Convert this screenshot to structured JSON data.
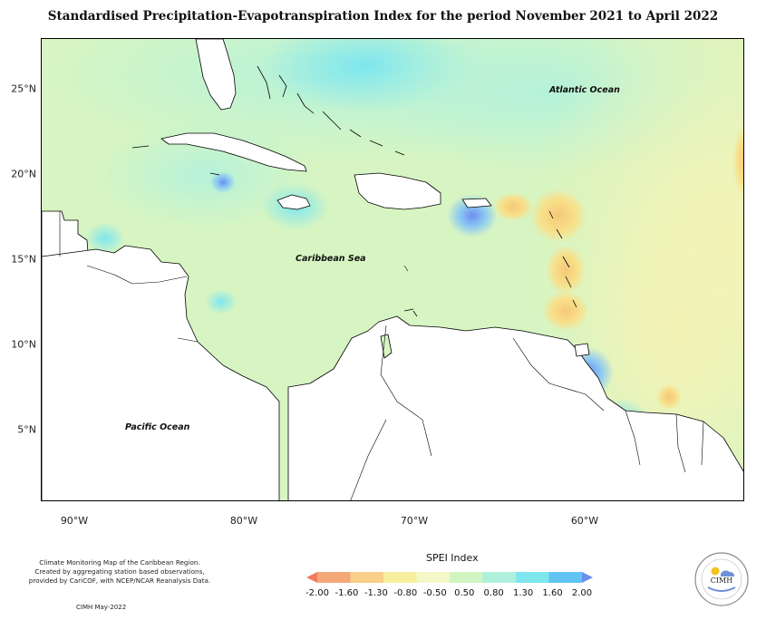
{
  "title": "Standardised Precipitation-Evapotranspiration Index for the period November 2021 to April 2022",
  "map": {
    "labels": {
      "atlantic": "Atlantic Ocean",
      "caribbean": "Caribbean Sea",
      "pacific": "Pacific Ocean"
    },
    "latitudes": [
      "25°N",
      "20°N",
      "15°N",
      "10°N",
      "5°N"
    ],
    "longitudes": [
      "90°W",
      "80°W",
      "70°W",
      "60°W"
    ],
    "colors": {
      "background": "#d7f5c2",
      "land": "#ffffff",
      "wet_light": "#b5f2da",
      "wet_mid": "#7ee6ef",
      "wet_strong": "#6e8ef0",
      "dry_light": "#f2f2b8",
      "dry_mid": "#f8df80",
      "dry_strong": "#f4c06a"
    }
  },
  "legend": {
    "title": "SPEI Index",
    "ticks": [
      "-2.00",
      "-1.60",
      "-1.30",
      "-0.80",
      "-0.50",
      "0.50",
      "0.80",
      "1.30",
      "1.60",
      "2.00"
    ],
    "colors": [
      "#f47a5e",
      "#f5a77a",
      "#f8d088",
      "#f7ef9c",
      "#f4f7c8",
      "#d0f5c2",
      "#aef0dc",
      "#7fe6ee",
      "#62c4f2",
      "#6e8ef0"
    ]
  },
  "credits": {
    "lines": [
      "Climate Monitoring Map of the Caribbean Region.",
      "Created by aggregating station based observations,",
      "provided by CariCOF, with NCEP/NCAR Reanalysis Data."
    ],
    "date": "CIMH May-2022"
  },
  "logo": {
    "text": "CIMH"
  }
}
